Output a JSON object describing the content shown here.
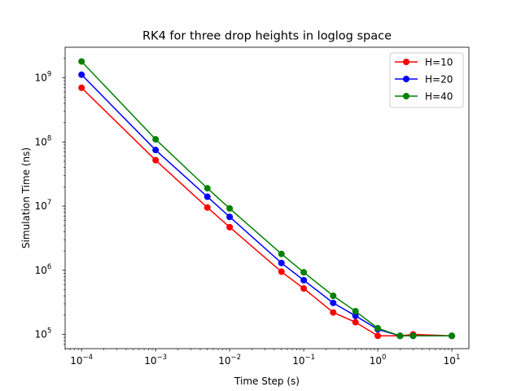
{
  "chart_data": {
    "type": "line",
    "title": "RK4 for three drop heights in loglog space",
    "xlabel": "Time Step (s)",
    "ylabel": "Simulation Time (ns)",
    "xscale": "log",
    "yscale": "log",
    "xlim": [
      6e-05,
      17
    ],
    "ylim": [
      60000,
      3000000000
    ],
    "x_ticks": [
      {
        "value": 0.0001,
        "base": "10",
        "exp": "−4"
      },
      {
        "value": 0.001,
        "base": "10",
        "exp": "−3"
      },
      {
        "value": 0.01,
        "base": "10",
        "exp": "−2"
      },
      {
        "value": 0.1,
        "base": "10",
        "exp": "−1"
      },
      {
        "value": 1,
        "base": "10",
        "exp": "0"
      },
      {
        "value": 10,
        "base": "10",
        "exp": "1"
      }
    ],
    "y_ticks": [
      {
        "value": 100000,
        "base": "10",
        "exp": "5"
      },
      {
        "value": 1000000,
        "base": "10",
        "exp": "6"
      },
      {
        "value": 10000000,
        "base": "10",
        "exp": "7"
      },
      {
        "value": 100000000,
        "base": "10",
        "exp": "8"
      },
      {
        "value": 1000000000,
        "base": "10",
        "exp": "9"
      }
    ],
    "x": [
      0.0001,
      0.001,
      0.005,
      0.01,
      0.05,
      0.1,
      0.25,
      0.5,
      1,
      2,
      3,
      10
    ],
    "series": [
      {
        "name": "H=10",
        "color": "#ff0000",
        "values": [
          700000000,
          52000000,
          9500000,
          4700000,
          950000,
          520000,
          220000,
          155000,
          95000,
          95000,
          100000,
          95000
        ]
      },
      {
        "name": "H=20",
        "color": "#0000ff",
        "values": [
          1120000000,
          75000000,
          14000000,
          6800000,
          1300000,
          700000,
          310000,
          195000,
          120000,
          95000,
          95000,
          95000
        ]
      },
      {
        "name": "H=40",
        "color": "#008000",
        "values": [
          1800000000,
          110000000,
          19000000,
          9200000,
          1800000,
          930000,
          400000,
          230000,
          125000,
          95000,
          95000,
          95000
        ]
      }
    ],
    "grid": false,
    "legend_position": "top-right"
  }
}
